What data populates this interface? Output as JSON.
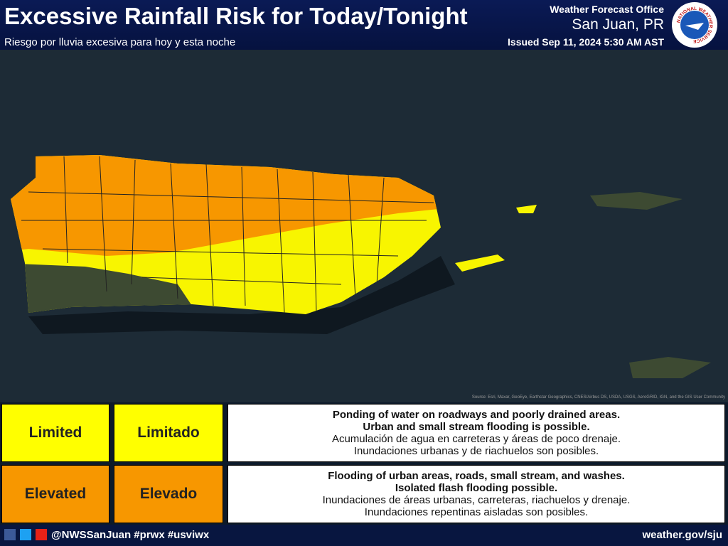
{
  "header": {
    "title": "Excessive Rainfall Risk for Today/Tonight",
    "subtitle": "Riesgo por lluvia excesiva para hoy y esta noche",
    "office": "Weather Forecast Office",
    "location": "San Juan, PR",
    "issued": "Issued Sep 11, 2024 5:30 AM AST",
    "logo": "NATIONAL WEATHER SERVICE"
  },
  "legend": {
    "rows": [
      {
        "level_en": "Limited",
        "level_es": "Limitado",
        "lines": [
          "Ponding of water on roadways and poorly drained areas.",
          "Urban and small stream flooding is possible.",
          "Acumulación de agua en carreteras y áreas de poco drenaje.",
          "Inundaciones urbanas y de riachuelos son posibles."
        ]
      },
      {
        "level_en": "Elevated",
        "level_es": "Elevado",
        "lines": [
          "Flooding of urban areas, roads, small stream, and washes.",
          "Isolated flash flooding possible.",
          "Inundaciones de áreas urbanas, carreteras, riachuelos y drenaje.",
          "Inundaciones repentinas aisladas son posibles."
        ]
      }
    ]
  },
  "map": {
    "source": "Source: Esri, Maxar, GeoEye, Earthstar Geographics, CNES/Airbus DS, USDA, USGS, AeroGRID, IGN, and the GIS User Community"
  },
  "footer": {
    "social": "@NWSSanJuan #prwx #usviwx",
    "website": "weather.gov/sju"
  }
}
